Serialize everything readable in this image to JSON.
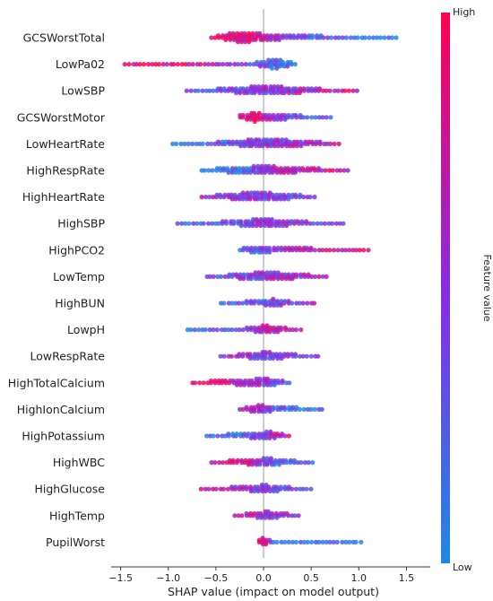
{
  "chart_data": {
    "type": "scatter",
    "subtype": "shap-beeswarm",
    "title": "",
    "xlabel": "SHAP value (impact on model output)",
    "ylabel": "",
    "xlim": [
      -1.6,
      1.75
    ],
    "xticks": [
      -1.5,
      -1.0,
      -0.5,
      0.0,
      0.5,
      1.0,
      1.5
    ],
    "xtick_labels": [
      "−1.5",
      "−1.0",
      "−0.5",
      "0.0",
      "0.5",
      "1.0",
      "1.5"
    ],
    "grid": false,
    "zero_line": 0,
    "colorbar": {
      "label": "Feature value",
      "high_label": "High",
      "low_label": "Low",
      "low_color": "#1e88e5",
      "high_color": "#ff0052"
    },
    "features": [
      {
        "name": "GCSWorstTotal",
        "range": [
          -0.55,
          1.4
        ],
        "shape": [
          [
            -0.5,
            0.2
          ],
          [
            -0.3,
            0.9
          ],
          [
            -0.2,
            1.0
          ],
          [
            0.1,
            0.55
          ],
          [
            0.3,
            0.4
          ],
          [
            0.6,
            0.3
          ],
          [
            0.9,
            0.2
          ],
          [
            1.2,
            0.12
          ],
          [
            1.4,
            0.05
          ]
        ],
        "color": [
          [
            -0.5,
            0.88
          ],
          [
            -0.15,
            0.92
          ],
          [
            0.0,
            0.6
          ],
          [
            0.3,
            0.4
          ],
          [
            0.6,
            0.25
          ],
          [
            1.0,
            0.12
          ],
          [
            1.4,
            0.05
          ]
        ]
      },
      {
        "name": "LowPa02",
        "range": [
          -1.45,
          0.35
        ],
        "shape": [
          [
            -1.45,
            0.05
          ],
          [
            -1.0,
            0.12
          ],
          [
            -0.5,
            0.15
          ],
          [
            -0.1,
            0.25
          ],
          [
            0.1,
            1.0
          ],
          [
            0.2,
            0.7
          ],
          [
            0.35,
            0.1
          ]
        ],
        "color": [
          [
            -1.45,
            0.88
          ],
          [
            -0.5,
            0.7
          ],
          [
            0.0,
            0.25
          ],
          [
            0.35,
            0.1
          ]
        ]
      },
      {
        "name": "LowSBP",
        "range": [
          -0.8,
          1.0
        ],
        "shape": [
          [
            -0.8,
            0.08
          ],
          [
            -0.5,
            0.3
          ],
          [
            -0.2,
            0.6
          ],
          [
            0.0,
            0.9
          ],
          [
            0.2,
            0.7
          ],
          [
            0.5,
            0.4
          ],
          [
            0.8,
            0.15
          ],
          [
            1.0,
            0.05
          ]
        ],
        "color": [
          [
            -0.8,
            0.3
          ],
          [
            -0.3,
            0.4
          ],
          [
            0.0,
            0.5
          ],
          [
            0.5,
            0.6
          ],
          [
            1.0,
            0.75
          ]
        ]
      },
      {
        "name": "GCSWorstMotor",
        "range": [
          -0.25,
          0.7
        ],
        "shape": [
          [
            -0.25,
            0.3
          ],
          [
            -0.1,
            1.0
          ],
          [
            0.0,
            0.55
          ],
          [
            0.2,
            0.55
          ],
          [
            0.4,
            0.3
          ],
          [
            0.7,
            0.05
          ]
        ],
        "color": [
          [
            -0.25,
            0.92
          ],
          [
            -0.05,
            0.85
          ],
          [
            0.1,
            0.45
          ],
          [
            0.4,
            0.3
          ],
          [
            0.7,
            0.2
          ]
        ]
      },
      {
        "name": "LowHeartRate",
        "range": [
          -0.95,
          0.8
        ],
        "shape": [
          [
            -0.95,
            0.05
          ],
          [
            -0.6,
            0.2
          ],
          [
            -0.3,
            0.45
          ],
          [
            -0.05,
            0.9
          ],
          [
            0.2,
            0.75
          ],
          [
            0.5,
            0.4
          ],
          [
            0.8,
            0.1
          ]
        ],
        "color": [
          [
            -0.95,
            0.15
          ],
          [
            -0.4,
            0.3
          ],
          [
            0.0,
            0.5
          ],
          [
            0.4,
            0.6
          ],
          [
            0.8,
            0.65
          ]
        ]
      },
      {
        "name": "HighRespRate",
        "range": [
          -0.65,
          0.9
        ],
        "shape": [
          [
            -0.65,
            0.1
          ],
          [
            -0.4,
            0.5
          ],
          [
            -0.1,
            0.7
          ],
          [
            0.0,
            0.9
          ],
          [
            0.2,
            0.6
          ],
          [
            0.5,
            0.4
          ],
          [
            0.9,
            0.05
          ]
        ],
        "color": [
          [
            -0.65,
            0.08
          ],
          [
            -0.2,
            0.15
          ],
          [
            0.0,
            0.45
          ],
          [
            0.2,
            0.65
          ],
          [
            0.5,
            0.7
          ],
          [
            0.9,
            0.75
          ]
        ]
      },
      {
        "name": "HighHeartRate",
        "range": [
          -0.65,
          0.55
        ],
        "shape": [
          [
            -0.65,
            0.1
          ],
          [
            -0.35,
            0.5
          ],
          [
            -0.1,
            0.9
          ],
          [
            0.1,
            0.7
          ],
          [
            0.35,
            0.4
          ],
          [
            0.55,
            0.1
          ]
        ],
        "color": [
          [
            -0.65,
            0.55
          ],
          [
            -0.2,
            0.5
          ],
          [
            0.1,
            0.45
          ],
          [
            0.55,
            0.4
          ]
        ]
      },
      {
        "name": "HighSBP",
        "range": [
          -0.9,
          0.85
        ],
        "shape": [
          [
            -0.9,
            0.05
          ],
          [
            -0.5,
            0.25
          ],
          [
            -0.2,
            0.55
          ],
          [
            0.0,
            0.9
          ],
          [
            0.2,
            0.55
          ],
          [
            0.5,
            0.25
          ],
          [
            0.85,
            0.05
          ]
        ],
        "color": [
          [
            -0.9,
            0.2
          ],
          [
            -0.4,
            0.35
          ],
          [
            0.0,
            0.5
          ],
          [
            0.4,
            0.55
          ],
          [
            0.85,
            0.3
          ]
        ]
      },
      {
        "name": "HighPCO2",
        "range": [
          -0.25,
          1.1
        ],
        "shape": [
          [
            -0.25,
            0.25
          ],
          [
            -0.05,
            0.7
          ],
          [
            0.1,
            0.5
          ],
          [
            0.3,
            0.45
          ],
          [
            0.6,
            0.25
          ],
          [
            0.9,
            0.12
          ],
          [
            1.1,
            0.05
          ]
        ],
        "color": [
          [
            -0.25,
            0.25
          ],
          [
            0.0,
            0.35
          ],
          [
            0.3,
            0.6
          ],
          [
            0.6,
            0.75
          ],
          [
            1.1,
            0.9
          ]
        ]
      },
      {
        "name": "LowTemp",
        "range": [
          -0.6,
          0.7
        ],
        "shape": [
          [
            -0.6,
            0.05
          ],
          [
            -0.4,
            0.3
          ],
          [
            -0.1,
            0.7
          ],
          [
            0.05,
            0.9
          ],
          [
            0.25,
            0.6
          ],
          [
            0.5,
            0.3
          ],
          [
            0.7,
            0.05
          ]
        ],
        "color": [
          [
            -0.6,
            0.35
          ],
          [
            -0.2,
            0.45
          ],
          [
            0.1,
            0.5
          ],
          [
            0.4,
            0.6
          ],
          [
            0.7,
            0.7
          ]
        ]
      },
      {
        "name": "HighBUN",
        "range": [
          -0.45,
          0.55
        ],
        "shape": [
          [
            -0.45,
            0.1
          ],
          [
            -0.2,
            0.3
          ],
          [
            0.0,
            0.45
          ],
          [
            0.1,
            0.75
          ],
          [
            0.3,
            0.3
          ],
          [
            0.55,
            0.05
          ]
        ],
        "color": [
          [
            -0.45,
            0.25
          ],
          [
            -0.1,
            0.3
          ],
          [
            0.05,
            0.35
          ],
          [
            0.25,
            0.45
          ],
          [
            0.55,
            0.5
          ]
        ]
      },
      {
        "name": "LowpH",
        "range": [
          -0.8,
          0.4
        ],
        "shape": [
          [
            -0.8,
            0.05
          ],
          [
            -0.5,
            0.2
          ],
          [
            -0.2,
            0.3
          ],
          [
            0.0,
            0.8
          ],
          [
            0.1,
            0.6
          ],
          [
            0.25,
            0.3
          ],
          [
            0.4,
            0.05
          ]
        ],
        "color": [
          [
            -0.8,
            0.2
          ],
          [
            -0.3,
            0.3
          ],
          [
            0.0,
            0.65
          ],
          [
            0.2,
            0.7
          ],
          [
            0.4,
            0.6
          ]
        ]
      },
      {
        "name": "LowRespRate",
        "range": [
          -0.45,
          0.6
        ],
        "shape": [
          [
            -0.45,
            0.1
          ],
          [
            -0.2,
            0.4
          ],
          [
            0.0,
            0.8
          ],
          [
            0.15,
            0.6
          ],
          [
            0.35,
            0.3
          ],
          [
            0.6,
            0.05
          ]
        ],
        "color": [
          [
            -0.45,
            0.5
          ],
          [
            -0.1,
            0.45
          ],
          [
            0.1,
            0.4
          ],
          [
            0.6,
            0.35
          ]
        ]
      },
      {
        "name": "HighTotalCalcium",
        "range": [
          -0.75,
          0.3
        ],
        "shape": [
          [
            -0.75,
            0.1
          ],
          [
            -0.5,
            0.4
          ],
          [
            -0.2,
            0.55
          ],
          [
            0.0,
            0.8
          ],
          [
            0.15,
            0.5
          ],
          [
            0.3,
            0.05
          ]
        ],
        "color": [
          [
            -0.75,
            0.92
          ],
          [
            -0.4,
            0.85
          ],
          [
            -0.1,
            0.6
          ],
          [
            0.1,
            0.35
          ],
          [
            0.3,
            0.3
          ]
        ]
      },
      {
        "name": "HighIonCalcium",
        "range": [
          -0.25,
          0.65
        ],
        "shape": [
          [
            -0.25,
            0.15
          ],
          [
            -0.05,
            0.8
          ],
          [
            0.1,
            0.45
          ],
          [
            0.35,
            0.3
          ],
          [
            0.65,
            0.05
          ]
        ],
        "color": [
          [
            -0.25,
            0.6
          ],
          [
            0.0,
            0.5
          ],
          [
            0.2,
            0.2
          ],
          [
            0.65,
            0.1
          ]
        ]
      },
      {
        "name": "HighPotassium",
        "range": [
          -0.6,
          0.3
        ],
        "shape": [
          [
            -0.6,
            0.08
          ],
          [
            -0.3,
            0.4
          ],
          [
            -0.05,
            0.55
          ],
          [
            0.05,
            0.8
          ],
          [
            0.15,
            0.4
          ],
          [
            0.3,
            0.08
          ]
        ],
        "color": [
          [
            -0.6,
            0.1
          ],
          [
            -0.2,
            0.15
          ],
          [
            0.0,
            0.45
          ],
          [
            0.15,
            0.75
          ],
          [
            0.3,
            0.85
          ]
        ]
      },
      {
        "name": "HighWBC",
        "range": [
          -0.55,
          0.55
        ],
        "shape": [
          [
            -0.55,
            0.08
          ],
          [
            -0.3,
            0.4
          ],
          [
            -0.05,
            0.6
          ],
          [
            0.05,
            0.8
          ],
          [
            0.25,
            0.4
          ],
          [
            0.55,
            0.05
          ]
        ],
        "color": [
          [
            -0.55,
            0.85
          ],
          [
            -0.2,
            0.8
          ],
          [
            0.0,
            0.45
          ],
          [
            0.2,
            0.2
          ],
          [
            0.55,
            0.1
          ]
        ]
      },
      {
        "name": "HighGlucose",
        "range": [
          -0.65,
          0.5
        ],
        "shape": [
          [
            -0.65,
            0.08
          ],
          [
            -0.3,
            0.35
          ],
          [
            -0.05,
            0.6
          ],
          [
            0.0,
            0.8
          ],
          [
            0.2,
            0.4
          ],
          [
            0.5,
            0.05
          ]
        ],
        "color": [
          [
            -0.65,
            0.7
          ],
          [
            -0.2,
            0.55
          ],
          [
            0.0,
            0.4
          ],
          [
            0.5,
            0.4
          ]
        ]
      },
      {
        "name": "HighTemp",
        "range": [
          -0.3,
          0.4
        ],
        "shape": [
          [
            -0.3,
            0.1
          ],
          [
            -0.1,
            0.45
          ],
          [
            0.05,
            0.8
          ],
          [
            0.2,
            0.4
          ],
          [
            0.4,
            0.05
          ]
        ],
        "color": [
          [
            -0.3,
            0.8
          ],
          [
            0.0,
            0.5
          ],
          [
            0.4,
            0.45
          ]
        ]
      },
      {
        "name": "PupilWorst",
        "range": [
          -0.05,
          1.05
        ],
        "shape": [
          [
            -0.05,
            0.3
          ],
          [
            0.0,
            0.9
          ],
          [
            0.08,
            0.3
          ],
          [
            0.2,
            0.15
          ],
          [
            0.5,
            0.12
          ],
          [
            0.8,
            0.08
          ],
          [
            1.05,
            0.03
          ]
        ],
        "color": [
          [
            -0.05,
            0.92
          ],
          [
            0.02,
            0.8
          ],
          [
            0.1,
            0.1
          ],
          [
            1.05,
            0.05
          ]
        ]
      }
    ]
  }
}
